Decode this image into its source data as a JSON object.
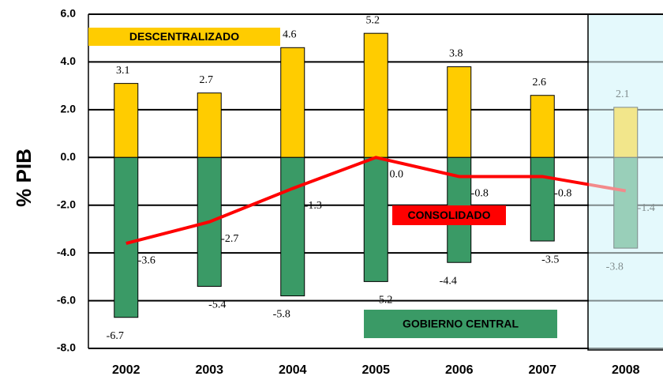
{
  "chart_data": {
    "type": "bar",
    "ylabel": "% PIB",
    "categories": [
      "2002",
      "2003",
      "2004",
      "2005",
      "2006",
      "2007",
      "2008"
    ],
    "series": [
      {
        "name": "DESCENTRALIZADO",
        "color": "#ffcc00",
        "type": "bar",
        "values": [
          3.1,
          2.7,
          4.6,
          5.2,
          3.8,
          2.6,
          2.1
        ],
        "value_labels": [
          "3.1",
          "2.7",
          "4.6",
          "5.2",
          "3.8",
          "2.6",
          "2.1"
        ]
      },
      {
        "name": "GOBIERNO CENTRAL",
        "color": "#3a9a66",
        "type": "bar",
        "values": [
          -6.7,
          -5.4,
          -5.8,
          -5.2,
          -4.4,
          -3.5,
          -3.8
        ],
        "value_labels": [
          "-6.7",
          "-5.4",
          "-5.8",
          "-5.2",
          "-4.4",
          "-3.5",
          "-3.8"
        ]
      },
      {
        "name": "CONSOLIDADO",
        "color": "#ff0000",
        "type": "line",
        "values": [
          -3.6,
          -2.7,
          -1.3,
          0.0,
          -0.8,
          -0.8,
          -1.4
        ],
        "value_labels": [
          "-3.6",
          "-2.7",
          "-1.3",
          "0.0",
          "-0.8",
          "-0.8",
          "-1.4"
        ]
      }
    ],
    "ylim": [
      -8,
      6
    ],
    "yticks": [
      {
        "value": -8,
        "label": "-8.0"
      },
      {
        "value": -6,
        "label": "-6.0"
      },
      {
        "value": -4,
        "label": "-4.0"
      },
      {
        "value": -2,
        "label": "-2.0"
      },
      {
        "value": 0,
        "label": "0.0"
      },
      {
        "value": 2,
        "label": "2.0"
      },
      {
        "value": 4,
        "label": "4.0"
      },
      {
        "value": 6,
        "label": "6.0"
      }
    ],
    "grid": true
  }
}
